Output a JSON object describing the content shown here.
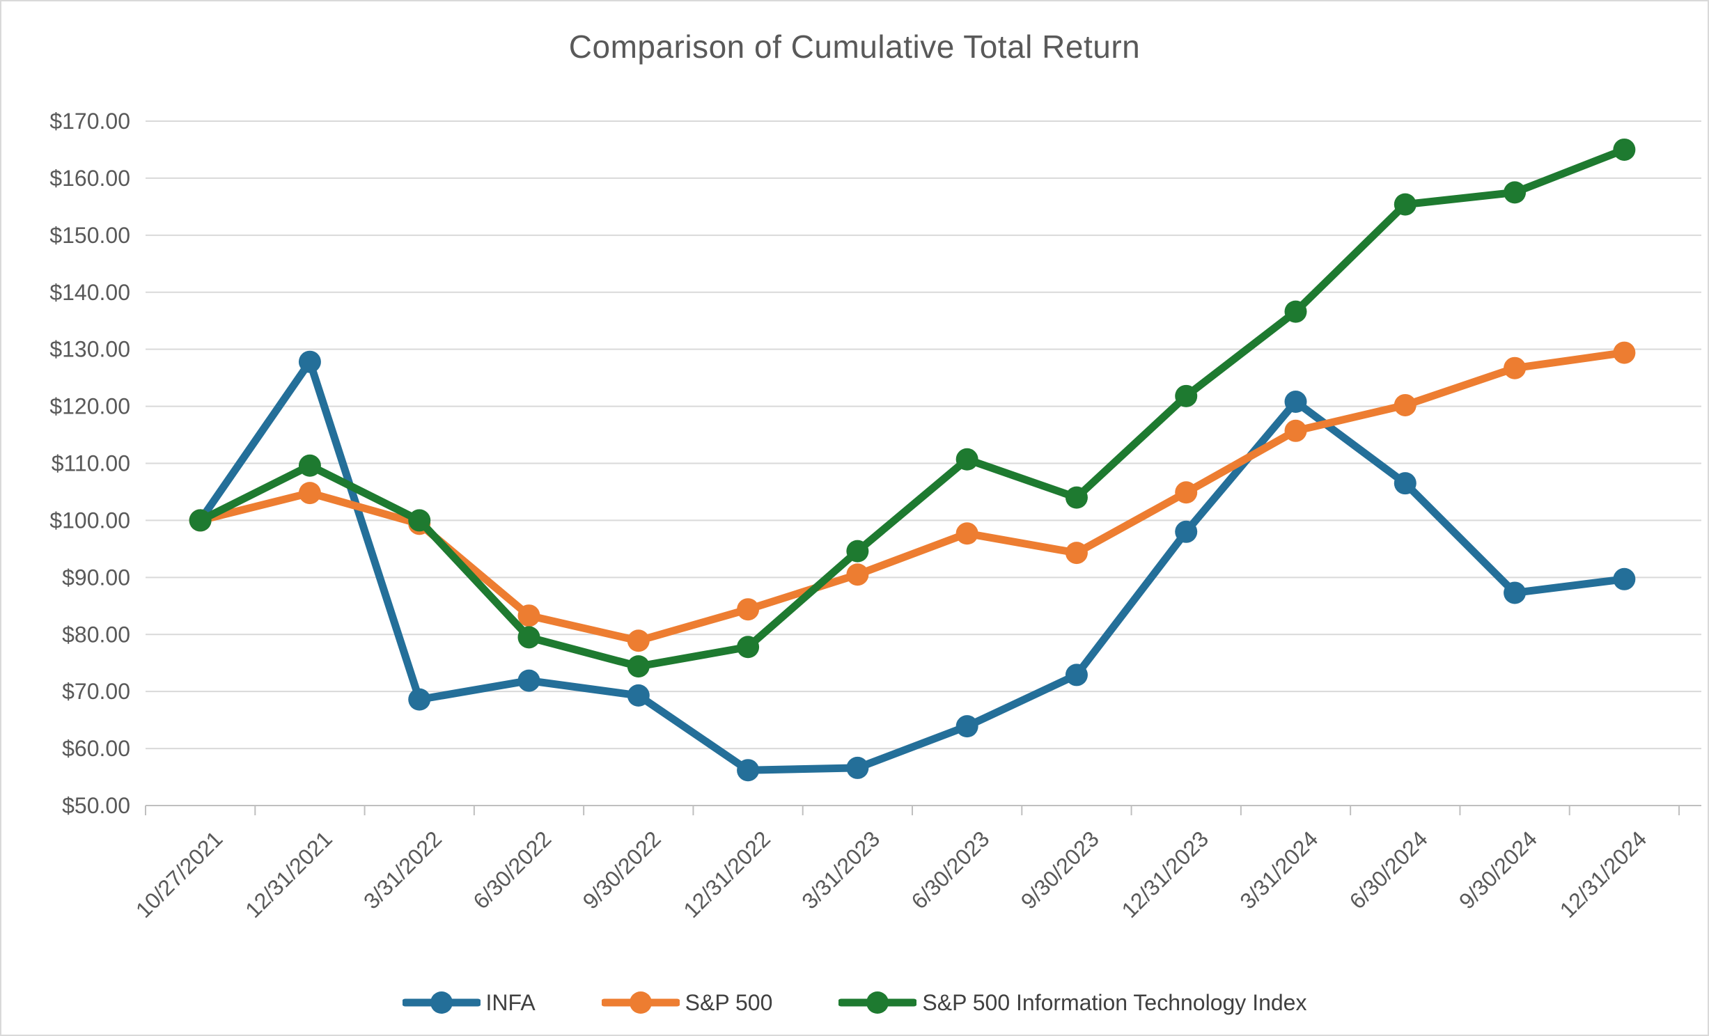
{
  "chart_data": {
    "type": "line",
    "title": "Comparison of Cumulative Total Return",
    "categories": [
      "10/27/2021",
      "12/31/2021",
      "3/31/2022",
      "6/30/2022",
      "9/30/2022",
      "12/31/2022",
      "3/31/2023",
      "6/30/2023",
      "9/30/2023",
      "12/31/2023",
      "3/31/2024",
      "6/30/2024",
      "9/30/2024",
      "12/31/2024"
    ],
    "series": [
      {
        "name": "INFA",
        "color": "#246F99",
        "values": [
          100.0,
          127.8,
          68.6,
          71.9,
          69.3,
          56.2,
          56.6,
          63.9,
          72.9,
          98.0,
          120.8,
          106.5,
          87.3,
          89.7
        ]
      },
      {
        "name": "S&P 500",
        "color": "#ED7D31",
        "values": [
          100.0,
          104.8,
          99.4,
          83.3,
          78.9,
          84.4,
          90.5,
          97.7,
          94.3,
          104.9,
          115.7,
          120.2,
          126.7,
          129.4
        ]
      },
      {
        "name": "S&P 500 Information Technology Index",
        "color": "#1E7A30",
        "values": [
          100.0,
          109.6,
          100.0,
          79.5,
          74.4,
          77.8,
          94.6,
          110.7,
          104.0,
          121.8,
          136.6,
          155.4,
          157.5,
          165.0
        ]
      }
    ],
    "ylim": [
      50,
      170
    ],
    "ytick_step": 10,
    "ytick_labels": [
      "$170.00",
      "$160.00",
      "$150.00",
      "$140.00",
      "$130.00",
      "$120.00",
      "$110.00",
      "$100.00",
      "$90.00",
      "$80.00",
      "$70.00",
      "$60.00",
      "$50.00"
    ],
    "xlabel": "",
    "ylabel": "",
    "grid": "horizontal",
    "legend_position": "bottom"
  },
  "style": {
    "gridline_color": "#d9d9d9",
    "axis_color": "#bfbfbf",
    "tick_label_color": "#595959",
    "title_color": "#595959",
    "legend_text_color": "#404040"
  }
}
